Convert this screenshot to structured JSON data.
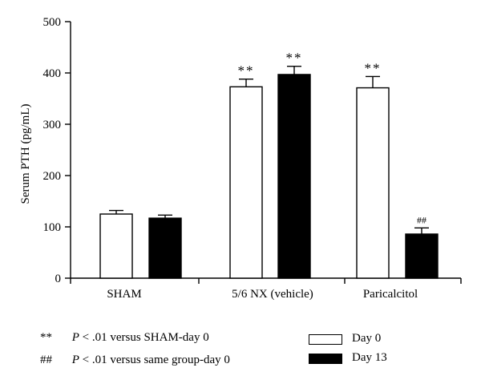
{
  "chart_data": {
    "type": "bar",
    "ylabel": "Serum PTH (pg/mL)",
    "xlabel": "",
    "ylim": [
      0,
      500
    ],
    "yticks": [
      "0",
      "100",
      "200",
      "300",
      "400",
      "500"
    ],
    "grid": false,
    "legend_position": "bottom-right",
    "categories": [
      "SHAM",
      "5/6 NX (vehicle)",
      "Paricalcitol"
    ],
    "series": [
      {
        "name": "Day 0",
        "color": "#ffffff",
        "values": [
          125,
          373,
          371
        ],
        "errors": [
          7,
          15,
          22
        ],
        "annotations": [
          "",
          "**",
          "**"
        ]
      },
      {
        "name": "Day 13",
        "color": "#000000",
        "values": [
          117,
          397,
          86
        ],
        "errors": [
          6,
          16,
          12
        ],
        "annotations": [
          "",
          "**",
          "##"
        ]
      }
    ]
  },
  "footnotes": [
    {
      "symbol": "**",
      "p": "P",
      "text": "< .01 versus SHAM-day 0"
    },
    {
      "symbol": "##",
      "p": "P",
      "text": "< .01 versus same group-day 0"
    }
  ]
}
